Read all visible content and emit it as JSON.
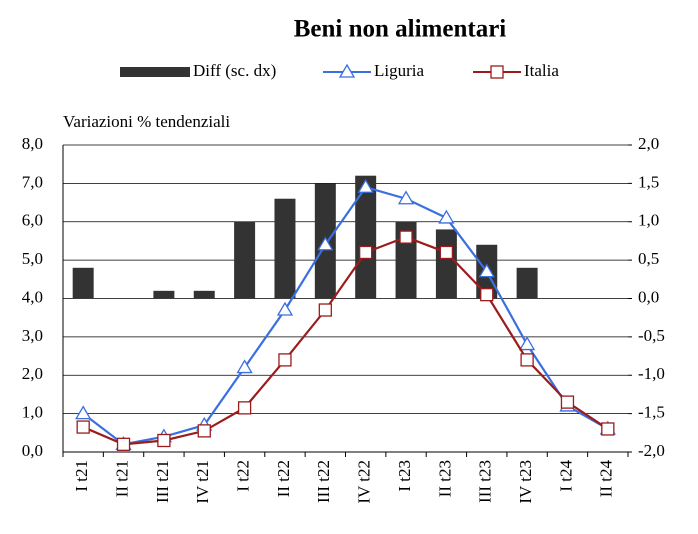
{
  "chart_data": {
    "type": "bar-line",
    "title": "Beni non alimentari",
    "y_label": "Variazioni % tendenziali",
    "categories": [
      "I t21",
      "II t21",
      "III t21",
      "IV t21",
      "I t22",
      "II t22",
      "III t22",
      "IV t22",
      "I t23",
      "II t23",
      "III t23",
      "IV t23",
      "I t24",
      "II t24"
    ],
    "series": [
      {
        "name": "Diff (sc. dx)",
        "type": "bar",
        "axis": "y2",
        "color": "#333333",
        "values": [
          0.4,
          0,
          0.1,
          0.1,
          1.0,
          1.3,
          1.5,
          1.6,
          1.0,
          0.9,
          0.7,
          0.4,
          0,
          0
        ]
      },
      {
        "name": "Liguria",
        "type": "line",
        "marker": "triangle",
        "color": "#3a6fe0",
        "values": [
          1.0,
          0.2,
          0.4,
          0.7,
          2.2,
          3.7,
          5.4,
          6.9,
          6.6,
          6.1,
          4.7,
          2.8,
          1.2,
          0.6
        ]
      },
      {
        "name": "Italia",
        "type": "line",
        "marker": "square",
        "color": "#9b1c1c",
        "values": [
          0.65,
          0.2,
          0.3,
          0.55,
          1.15,
          2.4,
          3.7,
          5.2,
          5.6,
          5.2,
          4.1,
          2.4,
          1.3,
          0.6
        ]
      }
    ],
    "ylim": [
      0,
      8
    ],
    "yticks": [
      {
        "value": 0,
        "label": "0,0"
      },
      {
        "value": 1,
        "label": "1,0"
      },
      {
        "value": 2,
        "label": "2,0"
      },
      {
        "value": 3,
        "label": "3,0"
      },
      {
        "value": 4,
        "label": "4,0"
      },
      {
        "value": 5,
        "label": "5,0"
      },
      {
        "value": 6,
        "label": "6,0"
      },
      {
        "value": 7,
        "label": "7,0"
      },
      {
        "value": 8,
        "label": "8,0"
      }
    ],
    "y2lim": [
      -2,
      2
    ],
    "y2ticks": [
      {
        "value": -2,
        "label": "-2,0"
      },
      {
        "value": -1.5,
        "label": "-1,5"
      },
      {
        "value": -1,
        "label": "-1,0"
      },
      {
        "value": -0.5,
        "label": "-0,5"
      },
      {
        "value": 0,
        "label": "0,0"
      },
      {
        "value": 0.5,
        "label": "0,5"
      },
      {
        "value": 1,
        "label": "1,0"
      },
      {
        "value": 1.5,
        "label": "1,5"
      },
      {
        "value": 2,
        "label": "2,0"
      }
    ],
    "grid": true
  }
}
